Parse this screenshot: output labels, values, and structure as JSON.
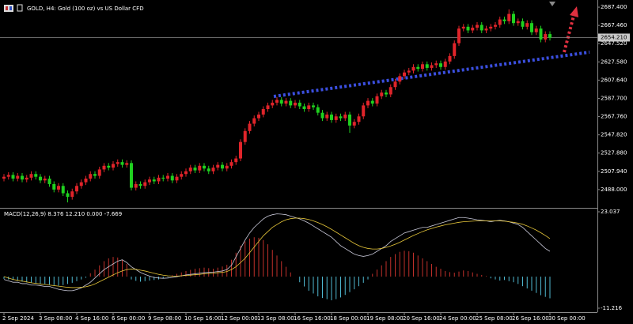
{
  "chart_data": [
    {
      "type": "candlestick",
      "title": "GOLD, H4:  Gold (100 oz) vs US Dollar CFD",
      "categories": [
        "2 Sep 2024",
        null,
        null,
        null,
        null,
        null,
        null,
        null,
        "3 Sep 08:00",
        null,
        null,
        null,
        null,
        null,
        null,
        null,
        "4 Sep 16:00",
        null,
        null,
        null,
        null,
        null,
        null,
        null,
        "6 Sep 00:00",
        null,
        null,
        null,
        null,
        null,
        null,
        null,
        "9 Sep 08:00",
        null,
        null,
        null,
        null,
        null,
        null,
        null,
        "10 Sep 16:00",
        null,
        null,
        null,
        null,
        null,
        null,
        null,
        "12 Sep 00:00",
        null,
        null,
        null,
        null,
        null,
        null,
        null,
        "13 Sep 08:00",
        null,
        null,
        null,
        null,
        null,
        null,
        null,
        "16 Sep 16:00",
        null,
        null,
        null,
        null,
        null,
        null,
        null,
        "18 Sep 00:00",
        null,
        null,
        null,
        null,
        null,
        null,
        null,
        "19 Sep 08:00",
        null,
        null,
        null,
        null,
        null,
        null,
        null,
        "20 Sep 16:00",
        null,
        null,
        null,
        null,
        null,
        null,
        null,
        "24 Sep 00:00",
        null,
        null,
        null,
        null,
        null,
        null,
        null,
        "25 Sep 08:00",
        null,
        null,
        null,
        null,
        null,
        null,
        null,
        "26 Sep 16:00",
        null,
        null,
        null,
        null,
        null,
        null,
        null,
        "30 Sep 00:00"
      ],
      "open": [
        2500,
        2502,
        2504,
        2500,
        2503,
        2499,
        2501,
        2505,
        2502,
        2498,
        2500,
        2494,
        2488,
        2492,
        2484,
        2480,
        2486,
        2492,
        2496,
        2500,
        2505,
        2503,
        2510,
        2514,
        2512,
        2516,
        2518,
        2515,
        2517,
        2490,
        2494,
        2492,
        2496,
        2499,
        2497,
        2501,
        2500,
        2503,
        2498,
        2502,
        2505,
        2508,
        2512,
        2509,
        2514,
        2511,
        2508,
        2512,
        2515,
        2511,
        2514,
        2518,
        2522,
        2540,
        2552,
        2560,
        2566,
        2570,
        2576,
        2580,
        2583,
        2586,
        2582,
        2585,
        2580,
        2583,
        2579,
        2576,
        2580,
        2578,
        2572,
        2566,
        2570,
        2564,
        2568,
        2566,
        2570,
        2558,
        2562,
        2568,
        2580,
        2585,
        2582,
        2590,
        2594,
        2592,
        2600,
        2606,
        2612,
        2616,
        2618,
        2622,
        2620,
        2625,
        2621,
        2624,
        2626,
        2622,
        2628,
        2634,
        2648,
        2664,
        2666,
        2662,
        2665,
        2668,
        2662,
        2664,
        2666,
        2668,
        2674,
        2672,
        2680,
        2670,
        2672,
        2666,
        2670,
        2660,
        2664,
        2652,
        2658
      ],
      "high": [
        2505,
        2507,
        2507,
        2506,
        2506,
        2504,
        2508,
        2508,
        2505,
        2503,
        2503,
        2497,
        2495,
        2495,
        2487,
        2489,
        2495,
        2499,
        2503,
        2508,
        2508,
        2513,
        2517,
        2517,
        2519,
        2521,
        2521,
        2520,
        2520,
        2497,
        2497,
        2499,
        2502,
        2502,
        2504,
        2504,
        2506,
        2506,
        2505,
        2508,
        2511,
        2515,
        2515,
        2517,
        2517,
        2514,
        2515,
        2518,
        2518,
        2517,
        2521,
        2525,
        2543,
        2555,
        2563,
        2569,
        2573,
        2579,
        2583,
        2586,
        2589,
        2589,
        2588,
        2588,
        2586,
        2586,
        2582,
        2583,
        2583,
        2581,
        2575,
        2573,
        2573,
        2571,
        2571,
        2573,
        2573,
        2565,
        2571,
        2583,
        2588,
        2588,
        2593,
        2597,
        2597,
        2603,
        2609,
        2615,
        2619,
        2621,
        2625,
        2625,
        2628,
        2628,
        2627,
        2629,
        2629,
        2631,
        2637,
        2651,
        2667,
        2669,
        2669,
        2668,
        2671,
        2671,
        2667,
        2669,
        2671,
        2677,
        2677,
        2685,
        2683,
        2675,
        2675,
        2673,
        2673,
        2667,
        2667,
        2661,
        2661
      ],
      "low": [
        2497,
        2499,
        2497,
        2497,
        2496,
        2496,
        2498,
        2499,
        2495,
        2495,
        2491,
        2485,
        2485,
        2481,
        2474,
        2477,
        2483,
        2489,
        2493,
        2497,
        2500,
        2500,
        2507,
        2509,
        2509,
        2513,
        2512,
        2512,
        2487,
        2487,
        2489,
        2489,
        2493,
        2494,
        2494,
        2497,
        2497,
        2495,
        2495,
        2499,
        2502,
        2505,
        2506,
        2506,
        2508,
        2505,
        2505,
        2509,
        2508,
        2508,
        2511,
        2515,
        2519,
        2537,
        2549,
        2557,
        2563,
        2567,
        2573,
        2577,
        2580,
        2579,
        2579,
        2577,
        2577,
        2576,
        2573,
        2573,
        2575,
        2569,
        2563,
        2563,
        2561,
        2561,
        2563,
        2563,
        2550,
        2555,
        2559,
        2565,
        2577,
        2579,
        2579,
        2587,
        2589,
        2589,
        2597,
        2603,
        2609,
        2613,
        2615,
        2617,
        2617,
        2618,
        2618,
        2621,
        2619,
        2619,
        2625,
        2631,
        2645,
        2661,
        2659,
        2659,
        2662,
        2659,
        2659,
        2661,
        2663,
        2665,
        2669,
        2669,
        2667,
        2667,
        2663,
        2663,
        2657,
        2657,
        2649,
        2649,
        2651
      ],
      "close": [
        2502,
        2504,
        2500,
        2503,
        2499,
        2501,
        2505,
        2502,
        2498,
        2500,
        2494,
        2488,
        2492,
        2484,
        2480,
        2486,
        2492,
        2496,
        2500,
        2505,
        2503,
        2510,
        2514,
        2512,
        2516,
        2518,
        2515,
        2517,
        2490,
        2494,
        2492,
        2496,
        2499,
        2497,
        2501,
        2500,
        2503,
        2498,
        2502,
        2505,
        2508,
        2512,
        2509,
        2514,
        2511,
        2508,
        2512,
        2515,
        2511,
        2514,
        2518,
        2522,
        2540,
        2552,
        2560,
        2566,
        2570,
        2576,
        2580,
        2583,
        2586,
        2582,
        2585,
        2580,
        2583,
        2579,
        2576,
        2580,
        2578,
        2572,
        2566,
        2570,
        2564,
        2568,
        2566,
        2570,
        2558,
        2562,
        2568,
        2580,
        2585,
        2582,
        2590,
        2594,
        2592,
        2600,
        2606,
        2612,
        2616,
        2618,
        2622,
        2620,
        2625,
        2621,
        2624,
        2626,
        2622,
        2628,
        2634,
        2648,
        2664,
        2666,
        2662,
        2665,
        2668,
        2662,
        2664,
        2666,
        2668,
        2674,
        2672,
        2680,
        2670,
        2672,
        2666,
        2670,
        2660,
        2664,
        2652,
        2658,
        2654
      ],
      "up_color": "#e0242a",
      "down_color": "#1fd11f",
      "last_price": {
        "value": 2654.21,
        "label": "2654.210"
      },
      "ylim": [
        2468.9,
        2693.5
      ],
      "yticks": [
        {
          "value": 2687.4,
          "label": "2687.400"
        },
        {
          "value": 2667.46,
          "label": "2667.460"
        },
        {
          "value": 2647.52,
          "label": "2647.520"
        },
        {
          "value": 2627.58,
          "label": "2627.580"
        },
        {
          "value": 2607.64,
          "label": "2607.640"
        },
        {
          "value": 2587.7,
          "label": "2587.700"
        },
        {
          "value": 2567.76,
          "label": "2567.760"
        },
        {
          "value": 2547.82,
          "label": "2547.820"
        },
        {
          "value": 2527.88,
          "label": "2527.880"
        },
        {
          "value": 2507.94,
          "label": "2507.940"
        },
        {
          "value": 2488,
          "label": "2488.000"
        }
      ]
    },
    {
      "type": "macd",
      "title": "MACD(12,26,9) 8.376 12.210 0.000 -7.669",
      "histogram": [
        -0.8,
        -1,
        -1.2,
        -1.5,
        -1.8,
        -2,
        -2.2,
        -2.4,
        -2.5,
        -2.6,
        -2.8,
        -3,
        -3.2,
        -3,
        -2.6,
        -2.2,
        -1.6,
        -1,
        -0.4,
        1.2,
        2.5,
        4,
        5.5,
        6.5,
        7,
        6.8,
        6,
        4.5,
        -1,
        -1.5,
        -1.8,
        -1.6,
        -1.4,
        -1.2,
        -1,
        -0.6,
        -0.2,
        0.5,
        1,
        1.5,
        2,
        2.4,
        2.8,
        3,
        3.2,
        3,
        2.8,
        3.2,
        3.6,
        4.2,
        6,
        8.5,
        11,
        12.5,
        13.5,
        14,
        13.8,
        13,
        11.5,
        9.5,
        7.5,
        5.5,
        3.5,
        1.5,
        0,
        -2,
        -3.5,
        -5,
        -6,
        -7,
        -7.6,
        -8,
        -8.4,
        -8,
        -7.4,
        -6.5,
        -5.5,
        -4.5,
        -3.4,
        -2.2,
        -1,
        1,
        2.5,
        4,
        5.5,
        7,
        8,
        8.8,
        9.2,
        9,
        8.5,
        7.5,
        6.5,
        5.5,
        4.5,
        3.5,
        2.8,
        2,
        1.6,
        1.4,
        1.8,
        2.2,
        2,
        1.5,
        1,
        0.6,
        0.2,
        -0.6,
        -1,
        -1.4,
        -1.2,
        -1.6,
        -2,
        -2.6,
        -3.4,
        -4.2,
        -5,
        -5.8,
        -6.6,
        -7.2,
        -7.7
      ],
      "positive_color": "#c0302a",
      "negative_color": "#4fb8d0",
      "series": [
        {
          "color": "#c8c8d8",
          "values": [
            -1,
            -1.5,
            -2,
            -2,
            -2.5,
            -2.5,
            -3,
            -3,
            -3.2,
            -3.5,
            -3.5,
            -4,
            -4.5,
            -4.8,
            -5,
            -5,
            -4.6,
            -4,
            -3,
            -2,
            -0.5,
            1,
            2.5,
            3.5,
            4.5,
            5.5,
            6,
            5,
            3.5,
            2.5,
            1.5,
            0.8,
            0.2,
            -0.3,
            -0.5,
            -0.6,
            -0.5,
            -0.3,
            0,
            0.3,
            0.6,
            0.8,
            1,
            1.2,
            1.4,
            1.5,
            1.6,
            1.8,
            2,
            2.5,
            4,
            7,
            10,
            13,
            15.5,
            17.5,
            19,
            20.5,
            21.5,
            22,
            22.3,
            22.2,
            22,
            21.5,
            21,
            20.5,
            19.8,
            19,
            18,
            17,
            16,
            15,
            14,
            12.5,
            11,
            10,
            9,
            8,
            7.5,
            7.2,
            7.5,
            8,
            9,
            10,
            11,
            12.5,
            13.5,
            14.5,
            15.5,
            16,
            16.5,
            17,
            17.5,
            17.5,
            18,
            18.5,
            19,
            19.5,
            20,
            20.5,
            21,
            21,
            20.8,
            20.5,
            20.2,
            20,
            19.8,
            19.5,
            19.8,
            20,
            19.8,
            19.5,
            19,
            18.5,
            17.5,
            16,
            14.5,
            13,
            11.5,
            10,
            9
          ]
        },
        {
          "color": "#e8c83a",
          "values": [
            0,
            -0.5,
            -1,
            -1.3,
            -1.6,
            -1.9,
            -2.2,
            -2.4,
            -2.6,
            -2.8,
            -3,
            -3.2,
            -3.4,
            -3.6,
            -3.8,
            -3.9,
            -3.9,
            -3.8,
            -3.6,
            -3.2,
            -2.6,
            -1.8,
            -1,
            -0.2,
            0.6,
            1.4,
            2,
            2.5,
            2.7,
            2.6,
            2.3,
            2,
            1.6,
            1.2,
            0.8,
            0.5,
            0.3,
            0.2,
            0.2,
            0.3,
            0.4,
            0.5,
            0.7,
            0.8,
            1,
            1.1,
            1.2,
            1.4,
            1.5,
            1.8,
            2.5,
            3.5,
            5,
            6.5,
            8.5,
            10.5,
            12.5,
            14.5,
            16,
            17.5,
            18.5,
            19.5,
            20.2,
            20.6,
            20.8,
            20.8,
            20.6,
            20.3,
            19.8,
            19.2,
            18.5,
            17.7,
            16.8,
            15.8,
            14.8,
            13.8,
            12.8,
            11.8,
            11,
            10.4,
            10,
            9.8,
            9.8,
            10,
            10.4,
            10.9,
            11.5,
            12.2,
            13,
            13.8,
            14.6,
            15.3,
            16,
            16.6,
            17.1,
            17.6,
            18,
            18.4,
            18.7,
            19,
            19.3,
            19.5,
            19.6,
            19.7,
            19.8,
            19.8,
            19.8,
            19.8,
            19.8,
            19.8,
            19.7,
            19.5,
            19.3,
            19,
            18.6,
            18,
            17.3,
            16.5,
            15.6,
            14.6,
            13.5
          ]
        }
      ],
      "ylim": [
        -12.62,
        24.16
      ],
      "yticks": [
        23.037,
        -11.216
      ]
    }
  ]
}
